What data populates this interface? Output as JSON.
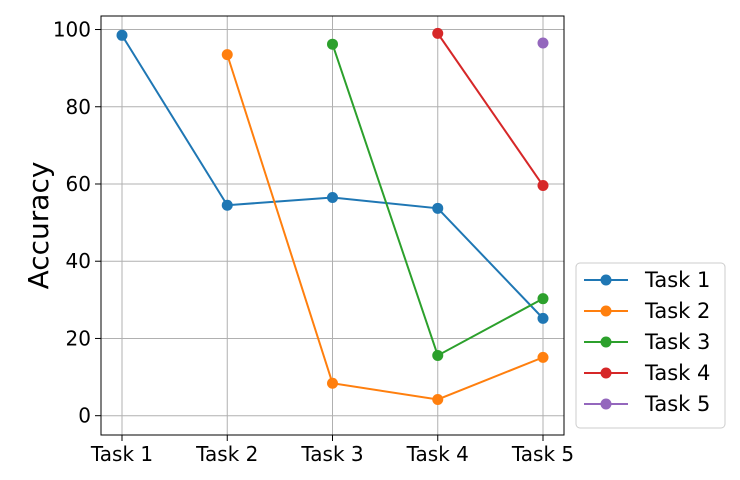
{
  "chart_data": {
    "type": "line",
    "title": "",
    "xlabel": "",
    "ylabel": "Accuracy",
    "categories": [
      "Task 1",
      "Task 2",
      "Task 3",
      "Task 4",
      "Task 5"
    ],
    "yticks": [
      0,
      20,
      40,
      60,
      80,
      100
    ],
    "ylim": [
      -5,
      103.5
    ],
    "grid": true,
    "legend_placement": "outside-right-bottom",
    "series": [
      {
        "name": "Task 1",
        "color": "#1f77b4",
        "values": [
          98.5,
          54.5,
          56.5,
          53.7,
          25.2
        ]
      },
      {
        "name": "Task 2",
        "color": "#ff7f0e",
        "values": [
          null,
          93.5,
          8.4,
          4.2,
          15.1
        ]
      },
      {
        "name": "Task 3",
        "color": "#2ca02c",
        "values": [
          null,
          null,
          96.2,
          15.6,
          30.3
        ]
      },
      {
        "name": "Task 4",
        "color": "#d62728",
        "values": [
          null,
          null,
          null,
          99.0,
          59.6
        ]
      },
      {
        "name": "Task 5",
        "color": "#9467bd",
        "values": [
          null,
          null,
          null,
          null,
          96.5
        ]
      }
    ]
  }
}
